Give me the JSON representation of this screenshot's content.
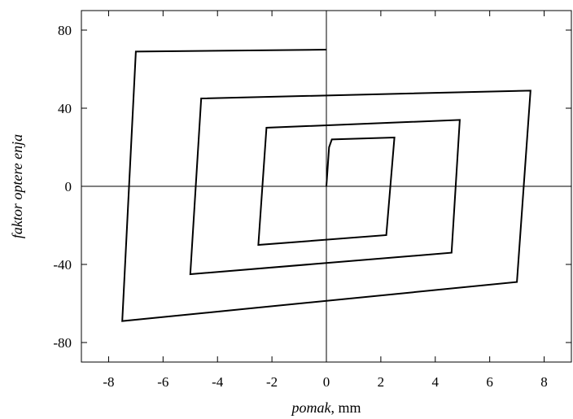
{
  "chart_data": {
    "type": "line",
    "title": "",
    "xlabel_italic": "pomak",
    "xlabel_rest": ", mm",
    "ylabel": "faktor optere enja",
    "xlim": [
      -9,
      9
    ],
    "ylim": [
      -90,
      90
    ],
    "xticks": [
      -8,
      -6,
      -4,
      -2,
      0,
      2,
      4,
      6,
      8
    ],
    "yticks": [
      -80,
      -40,
      0,
      40,
      80
    ],
    "zero_lines": true,
    "grid": false,
    "series": [
      {
        "color": "#000000",
        "x": [
          0,
          0.1,
          0.2,
          2.5,
          2.2,
          -2.5,
          -2.2,
          4.9,
          4.6,
          -5.0,
          -4.6,
          7.5,
          7.0,
          -7.5,
          -7.0,
          0
        ],
        "y": [
          0,
          20,
          24,
          25,
          -25,
          -30,
          30,
          34,
          -34,
          -45,
          45,
          49,
          -49,
          -69,
          69,
          70
        ]
      }
    ]
  }
}
